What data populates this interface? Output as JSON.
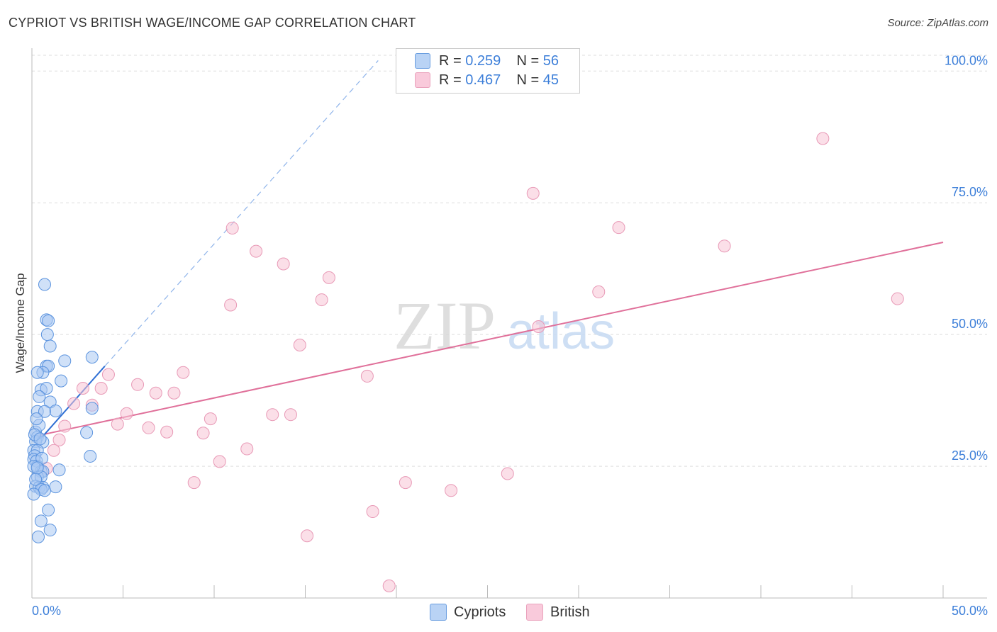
{
  "title": "CYPRIOT VS BRITISH WAGE/INCOME GAP CORRELATION CHART",
  "source": "Source: ZipAtlas.com",
  "watermark": {
    "zip": "ZIP",
    "atlas": "atlas"
  },
  "colors": {
    "blue_fill": "#a9c8f2",
    "blue_stroke": "#5b93de",
    "blue_line": "#2f6fd4",
    "pink_fill": "#f7c4d6",
    "pink_stroke": "#e899b6",
    "pink_line": "#e0709a",
    "axis_label": "#3d7fd9",
    "grid": "#dddddd"
  },
  "legend": {
    "cypriots": {
      "r_label": "R = ",
      "r_value": "0.259",
      "n_label": "N = ",
      "n_value": "56"
    },
    "british": {
      "r_label": "R = ",
      "r_value": "0.467",
      "n_label": "N = ",
      "n_value": "45"
    }
  },
  "chart_data": {
    "type": "scatter",
    "title": "CYPRIOT VS BRITISH WAGE/INCOME GAP CORRELATION CHART",
    "xlabel": "",
    "ylabel": "Wage/Income Gap",
    "xlim": [
      0,
      50
    ],
    "ylim": [
      0,
      103
    ],
    "x_tick_labels": [
      "0.0%",
      "50.0%"
    ],
    "y_ticks": [
      25,
      50,
      75,
      100
    ],
    "y_tick_labels": [
      "25.0%",
      "50.0%",
      "75.0%",
      "100.0%"
    ],
    "grid": true,
    "series": [
      {
        "name": "Cypriots",
        "points": [
          [
            0.7,
            59.5
          ],
          [
            0.8,
            52.8
          ],
          [
            0.9,
            52.6
          ],
          [
            0.85,
            50.0
          ],
          [
            1.0,
            47.8
          ],
          [
            1.8,
            45.0
          ],
          [
            3.3,
            45.7
          ],
          [
            0.8,
            44.0
          ],
          [
            0.9,
            44.0
          ],
          [
            0.6,
            42.8
          ],
          [
            0.3,
            42.8
          ],
          [
            1.6,
            41.2
          ],
          [
            0.5,
            39.5
          ],
          [
            0.8,
            39.8
          ],
          [
            0.4,
            38.2
          ],
          [
            1.0,
            37.2
          ],
          [
            3.3,
            36.0
          ],
          [
            1.3,
            35.5
          ],
          [
            0.3,
            35.4
          ],
          [
            0.7,
            35.4
          ],
          [
            3.0,
            31.4
          ],
          [
            0.2,
            31.5
          ],
          [
            0.3,
            30.5
          ],
          [
            0.2,
            29.7
          ],
          [
            0.6,
            29.6
          ],
          [
            0.1,
            28.0
          ],
          [
            0.3,
            28.0
          ],
          [
            0.15,
            27.0
          ],
          [
            3.2,
            26.9
          ],
          [
            0.1,
            26.3
          ],
          [
            0.25,
            26.0
          ],
          [
            0.3,
            25.0
          ],
          [
            0.5,
            24.0
          ],
          [
            0.6,
            24.0
          ],
          [
            1.5,
            24.3
          ],
          [
            0.3,
            23.0
          ],
          [
            0.5,
            23.0
          ],
          [
            0.2,
            21.2
          ],
          [
            0.4,
            21.0
          ],
          [
            0.6,
            21.0
          ],
          [
            0.5,
            20.6
          ],
          [
            0.7,
            20.4
          ],
          [
            0.1,
            19.7
          ],
          [
            1.3,
            21.1
          ],
          [
            0.9,
            16.7
          ],
          [
            0.5,
            14.6
          ],
          [
            1.0,
            12.9
          ],
          [
            0.35,
            11.6
          ],
          [
            0.1,
            25.0
          ],
          [
            0.2,
            22.5
          ],
          [
            0.4,
            32.8
          ],
          [
            0.25,
            34.0
          ],
          [
            0.15,
            31.0
          ],
          [
            0.55,
            26.5
          ],
          [
            0.45,
            30.2
          ],
          [
            0.3,
            24.7
          ]
        ],
        "trend": {
          "x0": 0.5,
          "y0": 30.3,
          "x1": 4.0,
          "y1": 44.0
        },
        "trend_extended": {
          "x0": 4.0,
          "y0": 44.0,
          "x1": 19.0,
          "y1": 102.0
        }
      },
      {
        "name": "British",
        "points": [
          [
            43.4,
            87.2
          ],
          [
            27.5,
            76.8
          ],
          [
            32.2,
            70.3
          ],
          [
            11.0,
            70.2
          ],
          [
            38.0,
            66.8
          ],
          [
            12.3,
            65.8
          ],
          [
            13.8,
            63.4
          ],
          [
            16.3,
            60.8
          ],
          [
            15.9,
            56.6
          ],
          [
            47.5,
            56.8
          ],
          [
            31.1,
            58.1
          ],
          [
            10.9,
            55.6
          ],
          [
            27.8,
            51.5
          ],
          [
            14.7,
            48.0
          ],
          [
            18.4,
            42.1
          ],
          [
            4.2,
            42.4
          ],
          [
            8.3,
            42.8
          ],
          [
            5.8,
            40.5
          ],
          [
            3.8,
            39.8
          ],
          [
            2.8,
            39.8
          ],
          [
            6.8,
            38.9
          ],
          [
            7.8,
            38.9
          ],
          [
            2.3,
            36.9
          ],
          [
            3.3,
            36.6
          ],
          [
            5.2,
            35.0
          ],
          [
            13.2,
            34.8
          ],
          [
            14.2,
            34.8
          ],
          [
            9.8,
            34.0
          ],
          [
            4.7,
            33.0
          ],
          [
            1.8,
            32.6
          ],
          [
            6.4,
            32.3
          ],
          [
            7.4,
            31.5
          ],
          [
            9.4,
            31.3
          ],
          [
            1.5,
            30.0
          ],
          [
            1.2,
            28.0
          ],
          [
            11.8,
            28.3
          ],
          [
            10.3,
            25.9
          ],
          [
            0.8,
            24.6
          ],
          [
            26.1,
            23.6
          ],
          [
            8.9,
            21.9
          ],
          [
            20.5,
            21.9
          ],
          [
            23.0,
            20.4
          ],
          [
            18.7,
            16.4
          ],
          [
            15.1,
            11.8
          ],
          [
            19.6,
            2.3
          ]
        ],
        "trend": {
          "x0": 0.3,
          "y0": 30.8,
          "x1": 50.0,
          "y1": 67.5
        }
      }
    ]
  },
  "bottom_legend": {
    "cypriots": "Cypriots",
    "british": "British"
  }
}
